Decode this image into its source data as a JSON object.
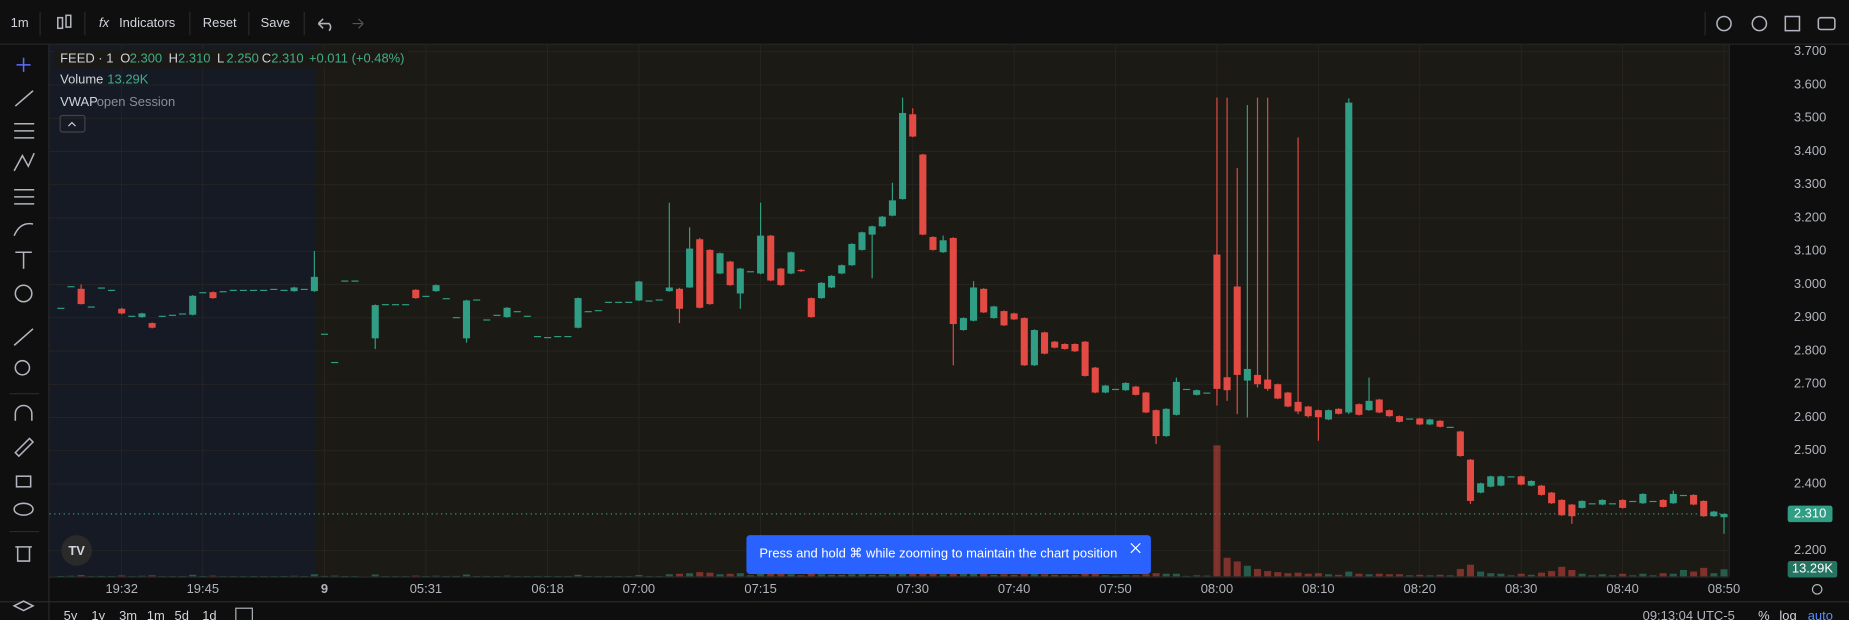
{
  "toolbar": {
    "interval": "1m",
    "buttons": [
      "Indicators",
      "Reset",
      "Save"
    ]
  },
  "range_bar": {
    "ranges": [
      "5y",
      "1y",
      "3m",
      "1m",
      "5d",
      "1d"
    ],
    "clock": "09:13:04 UTC-5",
    "options": [
      "%",
      "log",
      "auto"
    ]
  },
  "toast": {
    "text": "Press and hold ⌘ while zooming to maintain the chart position"
  },
  "chart_data": {
    "type": "candlestick",
    "legend": {
      "symbol": "FEED · 1",
      "items": [
        {
          "key": "O",
          "value": "2.300"
        },
        {
          "key": "H",
          "value": "2.310"
        },
        {
          "key": "L",
          "value": "2.250"
        },
        {
          "key": "C",
          "value": "2.310"
        }
      ],
      "change": "+0.011 (+0.48%)",
      "volume_name": "Volume",
      "volume_value": "13.29K",
      "indicator": "VWAP",
      "indicator_args": "open Session"
    },
    "price_badge": "2.310",
    "up_color": "#2f9e84",
    "down_color": "#e24a43",
    "ylim": [
      2.122,
      3.721
    ],
    "yticks": [
      {
        "value": 2.2,
        "label": "2.200"
      },
      {
        "value": 2.4,
        "label": "2.400"
      },
      {
        "value": 2.5,
        "label": "2.500"
      },
      {
        "value": 2.6,
        "label": "2.600"
      },
      {
        "value": 2.7,
        "label": "2.700"
      },
      {
        "value": 2.8,
        "label": "2.800"
      },
      {
        "value": 2.9,
        "label": "2.900"
      },
      {
        "value": 3.0,
        "label": "3.000"
      },
      {
        "value": 3.1,
        "label": "3.100"
      },
      {
        "value": 3.2,
        "label": "3.200"
      },
      {
        "value": 3.3,
        "label": "3.300"
      },
      {
        "value": 3.4,
        "label": "3.400"
      },
      {
        "value": 3.5,
        "label": "3.500"
      },
      {
        "value": 3.6,
        "label": "3.600"
      },
      {
        "value": 3.7,
        "label": "3.700"
      }
    ],
    "volume_lim": [
      0,
      250000
    ],
    "categories": [
      null,
      null,
      null,
      null,
      null,
      null,
      "19:32",
      null,
      null,
      null,
      null,
      null,
      null,
      null,
      "19:45",
      null,
      null,
      null,
      null,
      null,
      null,
      null,
      null,
      null,
      null,
      null,
      "9",
      null,
      null,
      null,
      null,
      null,
      null,
      null,
      null,
      null,
      "05:31",
      null,
      null,
      null,
      null,
      null,
      null,
      null,
      null,
      null,
      null,
      null,
      "06:18",
      null,
      null,
      null,
      null,
      null,
      null,
      null,
      null,
      "07:00",
      null,
      null,
      null,
      null,
      null,
      null,
      null,
      null,
      null,
      null,
      null,
      "07:15",
      null,
      null,
      null,
      null,
      null,
      null,
      null,
      null,
      null,
      null,
      null,
      null,
      null,
      null,
      "07:30",
      null,
      null,
      null,
      null,
      null,
      null,
      null,
      null,
      null,
      "07:40",
      null,
      null,
      null,
      null,
      null,
      null,
      null,
      null,
      null,
      "07:50",
      null,
      null,
      null,
      null,
      null,
      null,
      null,
      null,
      null,
      "08:00",
      null,
      null,
      null,
      null,
      null,
      null,
      null,
      null,
      null,
      "08:10",
      null,
      null,
      null,
      null,
      null,
      null,
      null,
      null,
      null,
      "08:20",
      null,
      null,
      null,
      null,
      null,
      null,
      null,
      null,
      null,
      "08:30",
      null,
      null,
      null,
      null,
      null,
      null,
      null,
      null,
      null,
      "08:40",
      null,
      null,
      null,
      null,
      null,
      null,
      null,
      null,
      null,
      "08:50"
    ],
    "ohlc": [
      [
        2.93,
        2.93,
        2.93,
        2.93
      ],
      [
        2.995,
        2.995,
        2.995,
        2.995
      ],
      [
        2.987,
        3.0,
        2.94,
        2.941
      ],
      [
        2.934,
        2.934,
        2.934,
        2.934
      ],
      [
        2.991,
        2.991,
        2.991,
        2.991
      ],
      [
        2.984,
        2.984,
        2.984,
        2.984
      ],
      [
        2.927,
        2.93,
        2.91,
        2.913
      ],
      [
        2.906,
        2.906,
        2.906,
        2.906
      ],
      [
        2.902,
        2.915,
        2.9,
        2.913
      ],
      [
        2.884,
        2.886,
        2.868,
        2.87
      ],
      [
        2.906,
        2.906,
        2.906,
        2.906
      ],
      [
        2.909,
        2.909,
        2.909,
        2.909
      ],
      [
        2.913,
        2.913,
        2.913,
        2.913
      ],
      [
        2.909,
        2.968,
        2.907,
        2.966
      ],
      [
        2.977,
        2.977,
        2.977,
        2.977
      ],
      [
        2.977,
        2.979,
        2.957,
        2.959
      ],
      [
        2.98,
        2.98,
        2.98,
        2.98
      ],
      [
        2.984,
        2.984,
        2.984,
        2.984
      ],
      [
        2.984,
        2.984,
        2.984,
        2.984
      ],
      [
        2.984,
        2.984,
        2.984,
        2.984
      ],
      [
        2.984,
        2.984,
        2.984,
        2.984
      ],
      [
        2.987,
        2.987,
        2.987,
        2.987
      ],
      [
        2.984,
        2.984,
        2.984,
        2.984
      ],
      [
        2.98,
        2.993,
        2.978,
        2.991
      ],
      [
        2.987,
        2.987,
        2.987,
        2.987
      ],
      [
        2.98,
        3.101,
        2.978,
        3.023
      ],
      [
        2.852,
        2.852,
        2.852,
        2.852
      ],
      [
        2.767,
        2.767,
        2.767,
        2.767
      ],
      [
        3.012,
        3.012,
        3.012,
        3.012
      ],
      [
        3.012,
        3.012,
        3.012,
        3.012
      ],
      null,
      [
        2.838,
        2.94,
        2.806,
        2.938
      ],
      [
        2.941,
        2.941,
        2.941,
        2.941
      ],
      [
        2.941,
        2.941,
        2.941,
        2.941
      ],
      [
        2.941,
        2.941,
        2.941,
        2.941
      ],
      [
        2.984,
        2.986,
        2.957,
        2.959
      ],
      [
        2.966,
        2.966,
        2.966,
        2.966
      ],
      [
        2.98,
        3.0,
        2.978,
        2.998
      ],
      [
        2.959,
        2.959,
        2.959,
        2.959
      ],
      [
        2.902,
        2.902,
        2.902,
        2.902
      ],
      [
        2.838,
        2.954,
        2.825,
        2.952
      ],
      [
        2.955,
        2.955,
        2.955,
        2.955
      ],
      [
        2.895,
        2.895,
        2.895,
        2.895
      ],
      [
        2.909,
        2.909,
        2.909,
        2.909
      ],
      [
        2.902,
        2.932,
        2.9,
        2.93
      ],
      [
        2.92,
        2.92,
        2.92,
        2.92
      ],
      [
        2.906,
        2.906,
        2.906,
        2.906
      ],
      [
        2.845,
        2.845,
        2.845,
        2.845
      ],
      [
        2.842,
        2.842,
        2.842,
        2.842
      ],
      [
        2.845,
        2.845,
        2.845,
        2.845
      ],
      [
        2.845,
        2.845,
        2.845,
        2.845
      ],
      [
        2.87,
        2.961,
        2.868,
        2.959
      ],
      [
        2.92,
        2.92,
        2.92,
        2.92
      ],
      [
        2.923,
        2.923,
        2.923,
        2.923
      ],
      [
        2.948,
        2.948,
        2.948,
        2.948
      ],
      [
        2.948,
        2.948,
        2.948,
        2.948
      ],
      [
        2.948,
        2.948,
        2.948,
        2.948
      ],
      [
        2.952,
        3.011,
        2.95,
        3.009
      ],
      [
        2.952,
        2.952,
        2.952,
        2.952
      ],
      [
        2.955,
        2.955,
        2.955,
        2.955
      ],
      [
        2.98,
        3.246,
        2.978,
        2.991
      ],
      [
        2.987,
        2.99,
        2.884,
        2.927
      ],
      [
        2.991,
        3.172,
        2.99,
        3.108
      ],
      [
        3.136,
        3.14,
        2.928,
        2.93
      ],
      [
        3.104,
        3.106,
        2.939,
        2.941
      ],
      [
        3.033,
        3.096,
        3.031,
        3.094
      ],
      [
        3.069,
        3.071,
        2.996,
        2.998
      ],
      [
        2.973,
        3.05,
        2.927,
        3.048
      ],
      [
        3.04,
        3.04,
        3.04,
        3.04
      ],
      [
        3.033,
        3.246,
        3.031,
        3.147
      ],
      [
        3.147,
        3.149,
        3.01,
        3.012
      ],
      [
        3.048,
        3.05,
        2.996,
        2.998
      ],
      [
        3.033,
        3.099,
        3.031,
        3.097
      ],
      [
        3.044,
        3.046,
        3.038,
        3.04
      ],
      [
        2.959,
        2.961,
        2.9,
        2.902
      ],
      [
        2.959,
        3.007,
        2.957,
        3.005
      ],
      [
        2.991,
        3.028,
        2.989,
        3.026
      ],
      [
        3.033,
        3.06,
        3.031,
        3.058
      ],
      [
        3.058,
        3.124,
        3.056,
        3.122
      ],
      [
        3.104,
        3.159,
        3.102,
        3.157
      ],
      [
        3.15,
        3.177,
        3.019,
        3.175
      ],
      [
        3.175,
        3.206,
        3.173,
        3.204
      ],
      [
        3.207,
        3.306,
        3.205,
        3.253
      ],
      [
        3.257,
        3.562,
        3.255,
        3.516
      ],
      [
        3.512,
        3.53,
        3.443,
        3.445
      ],
      [
        3.391,
        3.393,
        3.148,
        3.15
      ],
      [
        3.143,
        3.145,
        3.102,
        3.104
      ],
      [
        3.097,
        3.147,
        3.095,
        3.133
      ],
      [
        3.14,
        3.142,
        2.757,
        2.881
      ],
      [
        2.863,
        2.901,
        2.861,
        2.899
      ],
      [
        2.891,
        3.01,
        2.889,
        2.991
      ],
      [
        2.987,
        2.989,
        2.914,
        2.916
      ],
      [
        2.899,
        2.936,
        2.897,
        2.934
      ],
      [
        2.92,
        2.922,
        2.875,
        2.877
      ],
      [
        2.913,
        2.915,
        2.893,
        2.895
      ],
      [
        2.899,
        2.901,
        2.755,
        2.757
      ],
      [
        2.757,
        2.865,
        2.755,
        2.863
      ],
      [
        2.856,
        2.858,
        2.79,
        2.792
      ],
      [
        2.828,
        2.83,
        2.808,
        2.81
      ],
      [
        2.821,
        2.823,
        2.804,
        2.806
      ],
      [
        2.821,
        2.823,
        2.797,
        2.799
      ],
      [
        2.828,
        2.83,
        2.723,
        2.725
      ],
      [
        2.75,
        2.752,
        2.673,
        2.675
      ],
      [
        2.675,
        2.698,
        2.673,
        2.696
      ],
      [
        2.686,
        2.686,
        2.686,
        2.686
      ],
      [
        2.682,
        2.706,
        2.68,
        2.704
      ],
      [
        2.693,
        2.695,
        2.666,
        2.668
      ],
      [
        2.675,
        2.677,
        2.613,
        2.615
      ],
      [
        2.622,
        2.624,
        2.52,
        2.544
      ],
      [
        2.544,
        2.628,
        2.542,
        2.626
      ],
      [
        2.608,
        2.72,
        2.606,
        2.707
      ],
      [
        2.686,
        2.686,
        2.686,
        2.686
      ],
      [
        2.668,
        2.684,
        2.666,
        2.682
      ],
      [
        2.675,
        2.675,
        2.675,
        2.675
      ],
      [
        3.09,
        3.562,
        2.636,
        2.686
      ],
      [
        2.721,
        3.562,
        2.65,
        2.682
      ],
      [
        2.994,
        3.35,
        2.61,
        2.728
      ],
      [
        2.711,
        3.54,
        2.6,
        2.746
      ],
      [
        2.728,
        3.562,
        2.69,
        2.7
      ],
      [
        2.714,
        3.562,
        2.68,
        2.686
      ],
      [
        2.7,
        2.702,
        2.655,
        2.657
      ],
      [
        2.675,
        2.677,
        2.631,
        2.633
      ],
      [
        2.647,
        3.442,
        2.61,
        2.618
      ],
      [
        2.633,
        2.635,
        2.6,
        2.604
      ],
      [
        2.622,
        2.624,
        2.53,
        2.601
      ],
      [
        2.594,
        2.624,
        2.592,
        2.622
      ],
      [
        2.626,
        2.628,
        2.609,
        2.611
      ],
      [
        2.615,
        3.56,
        2.61,
        3.547
      ],
      [
        2.64,
        2.642,
        2.606,
        2.608
      ],
      [
        2.622,
        2.72,
        2.62,
        2.65
      ],
      [
        2.654,
        2.656,
        2.613,
        2.615
      ],
      [
        2.622,
        2.624,
        2.602,
        2.604
      ],
      [
        2.604,
        2.606,
        2.585,
        2.587
      ],
      [
        2.597,
        2.597,
        2.597,
        2.597
      ],
      [
        2.597,
        2.599,
        2.577,
        2.579
      ],
      [
        2.579,
        2.596,
        2.577,
        2.594
      ],
      [
        2.59,
        2.592,
        2.57,
        2.572
      ],
      [
        2.572,
        2.572,
        2.572,
        2.572
      ],
      [
        2.558,
        2.56,
        2.482,
        2.484
      ],
      [
        2.473,
        2.475,
        2.34,
        2.349
      ],
      [
        2.374,
        2.404,
        2.372,
        2.402
      ],
      [
        2.392,
        2.425,
        2.39,
        2.423
      ],
      [
        2.395,
        2.425,
        2.393,
        2.423
      ],
      [
        2.423,
        2.423,
        2.423,
        2.423
      ],
      [
        2.423,
        2.425,
        2.396,
        2.398
      ],
      [
        2.395,
        2.411,
        2.393,
        2.409
      ],
      [
        2.395,
        2.397,
        2.365,
        2.367
      ],
      [
        2.374,
        2.376,
        2.34,
        2.342
      ],
      [
        2.352,
        2.354,
        2.304,
        2.306
      ],
      [
        2.338,
        2.34,
        2.28,
        2.303
      ],
      [
        2.328,
        2.351,
        2.326,
        2.349
      ],
      [
        2.342,
        2.342,
        2.342,
        2.342
      ],
      [
        2.338,
        2.354,
        2.336,
        2.352
      ],
      [
        2.342,
        2.342,
        2.342,
        2.342
      ],
      [
        2.352,
        2.354,
        2.326,
        2.328
      ],
      [
        2.349,
        2.349,
        2.349,
        2.349
      ],
      [
        2.342,
        2.372,
        2.34,
        2.37
      ],
      [
        2.349,
        2.349,
        2.349,
        2.349
      ],
      [
        2.352,
        2.354,
        2.329,
        2.331
      ],
      [
        2.342,
        2.38,
        2.34,
        2.37
      ],
      [
        2.367,
        2.367,
        2.367,
        2.367
      ],
      [
        2.367,
        2.369,
        2.336,
        2.338
      ],
      [
        2.349,
        2.351,
        2.301,
        2.303
      ],
      [
        2.303,
        2.319,
        2.301,
        2.317
      ],
      [
        2.3,
        2.31,
        2.25,
        2.31
      ]
    ],
    "volume": [
      800,
      1200,
      2500,
      600,
      900,
      700,
      1800,
      500,
      1200,
      2200,
      500,
      600,
      700,
      3000,
      800,
      1500,
      500,
      600,
      500,
      700,
      600,
      500,
      700,
      1200,
      600,
      4000,
      900,
      1500,
      800,
      600,
      null,
      3500,
      600,
      500,
      600,
      1500,
      700,
      1200,
      800,
      900,
      3500,
      700,
      900,
      600,
      1500,
      600,
      700,
      900,
      800,
      700,
      600,
      3000,
      700,
      600,
      800,
      700,
      600,
      2500,
      700,
      600,
      4000,
      5000,
      6000,
      8000,
      7000,
      4000,
      5000,
      6000,
      2000,
      7000,
      8000,
      5000,
      4000,
      2000,
      5000,
      4000,
      3000,
      3000,
      4000,
      4000,
      3000,
      3000,
      5000,
      12000,
      10000,
      9000,
      5000,
      4000,
      9000,
      5000,
      6000,
      5000,
      3000,
      4000,
      3000,
      7000,
      5000,
      4000,
      3000,
      2000,
      2000,
      5000,
      6000,
      2000,
      1000,
      2000,
      2000,
      4000,
      6000,
      5000,
      5000,
      1000,
      2000,
      1500,
      246000,
      35000,
      28000,
      20000,
      14000,
      10000,
      8000,
      6000,
      7000,
      5000,
      6000,
      4000,
      3000,
      9000,
      5000,
      4000,
      5000,
      4000,
      4000,
      2000,
      3000,
      2000,
      3000,
      2000,
      14000,
      22000,
      9000,
      6000,
      5000,
      2000,
      5000,
      3000,
      7000,
      10000,
      18000,
      12000,
      5000,
      2000,
      4000,
      2000,
      5000,
      2000,
      5000,
      2000,
      6000,
      5000,
      12000,
      9000,
      16000,
      6000,
      13290
    ]
  }
}
